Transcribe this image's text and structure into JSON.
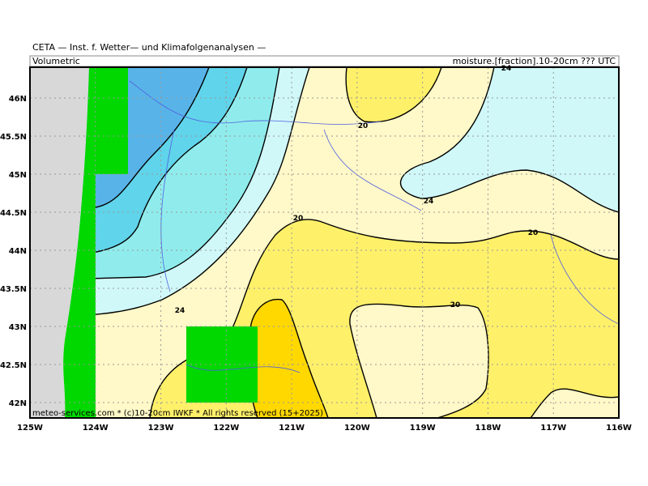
{
  "header": {
    "title": "CETA — Inst. f. Wetter— und Klimafolgenanalysen —",
    "left": "Volumetric",
    "right": "moisture.[fraction].10-20cm ??? UTC"
  },
  "map": {
    "lat_labels": [
      "46N",
      "45.5N",
      "45N",
      "44.5N",
      "44N",
      "43.5N",
      "43N",
      "42.5N",
      "42N"
    ],
    "lon_labels": [
      "125W",
      "124W",
      "123W",
      "122W",
      "121W",
      "120W",
      "119W",
      "118W",
      "117W",
      "116W"
    ],
    "contour_labels": [
      24,
      20,
      24,
      20,
      20,
      24,
      20
    ],
    "footer": "meteo-services.com * (c)10-20cm IWKF * All rights reserved (15+2025)"
  }
}
